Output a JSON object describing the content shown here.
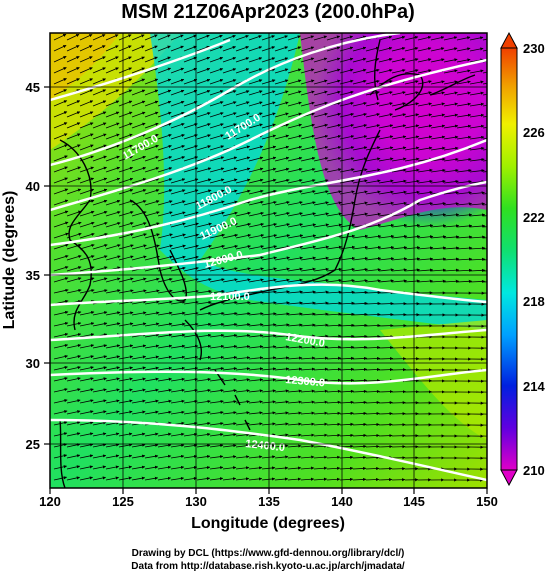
{
  "title": "MSM 21Z06Apr2023 (200.0hPa)",
  "xlabel": "Longitude (degrees)",
  "ylabel": "Latitude  (degrees)",
  "x_ticks": [
    "120",
    "125",
    "130",
    "135",
    "140",
    "145",
    "150"
  ],
  "y_ticks": [
    "25",
    "30",
    "35",
    "40",
    "45"
  ],
  "colorbar": {
    "ticks": [
      "210",
      "214",
      "218",
      "222",
      "226",
      "230"
    ],
    "range": [
      210,
      230
    ],
    "colors": [
      "#e000c8",
      "#6000e0",
      "#0020e0",
      "#00a0ff",
      "#00e8e0",
      "#10e070",
      "#30e020",
      "#a0f000",
      "#f0f000",
      "#f0a000",
      "#f04000"
    ]
  },
  "contour_labels": [
    "11700.0",
    "11800.0",
    "11900.0",
    "12000.0",
    "12100.0",
    "12200.0",
    "12300.0",
    "12400.0"
  ],
  "credits": {
    "line1": "Drawing by DCL (https://www.gfd-dennou.org/library/dcl/)",
    "line2": "Data from http://database.rish.kyoto-u.ac.jp/arch/jmadata/"
  }
}
